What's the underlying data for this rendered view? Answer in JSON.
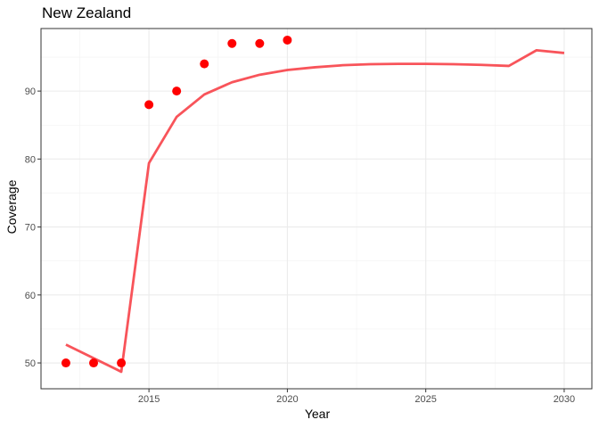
{
  "chart_data": {
    "type": "line",
    "title": "New Zealand",
    "xlabel": "Year",
    "ylabel": "Coverage",
    "xlim": [
      2011.1,
      2031.0
    ],
    "ylim": [
      46.2,
      99.2
    ],
    "xticks": [
      2015,
      2020,
      2025,
      2030
    ],
    "yticks": [
      50,
      60,
      70,
      80,
      90
    ],
    "grid": true,
    "legend": "none",
    "series": [
      {
        "kind": "scatter",
        "color": "#ff0000",
        "x": [
          2012,
          2013,
          2014,
          2015,
          2016,
          2017,
          2018,
          2019,
          2020
        ],
        "y": [
          50,
          50,
          50,
          88,
          90,
          94,
          97,
          97,
          97.5
        ]
      },
      {
        "kind": "line",
        "color": "#f8545a",
        "x": [
          2012,
          2014,
          2015,
          2016,
          2017,
          2018,
          2019,
          2020,
          2021,
          2022,
          2023,
          2024,
          2025,
          2026,
          2027,
          2028,
          2029,
          2030
        ],
        "y": [
          52.7,
          48.7,
          79.4,
          86.2,
          89.5,
          91.3,
          92.4,
          93.1,
          93.5,
          93.8,
          93.95,
          94.0,
          94.0,
          93.95,
          93.85,
          93.7,
          96.0,
          95.6
        ]
      }
    ]
  }
}
